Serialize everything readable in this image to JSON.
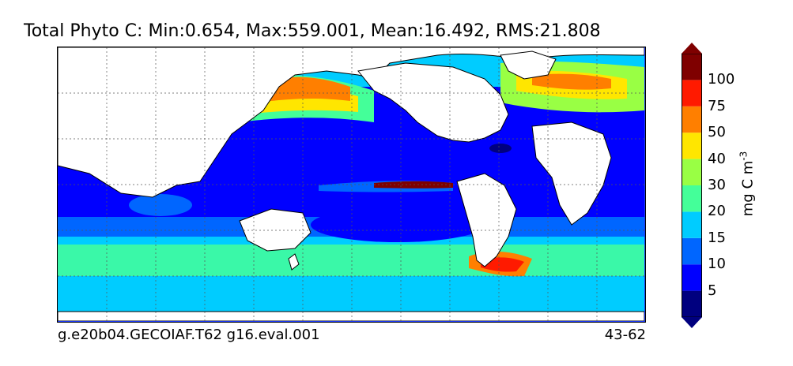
{
  "title": "Total Phyto C: Min:0.654, Max:559.001, Mean:16.492, RMS:21.808",
  "footer": {
    "case_name": "g.e20b04.GECOIAF.T62 g16.eval.001",
    "years": "43-62"
  },
  "colorbar": {
    "unit_prefix": "mg C m",
    "unit_exponent": "-3",
    "ticks": [
      "5",
      "10",
      "15",
      "20",
      "30",
      "40",
      "50",
      "75",
      "100"
    ],
    "colors": [
      "#00007f",
      "#0000ff",
      "#0066ff",
      "#00ccff",
      "#44ff99",
      "#99ff44",
      "#ffe600",
      "#ff7f00",
      "#ff1a00",
      "#7f0000"
    ],
    "extend": "both"
  },
  "map": {
    "land_color": "#ffffff",
    "grid": "dotted"
  }
}
